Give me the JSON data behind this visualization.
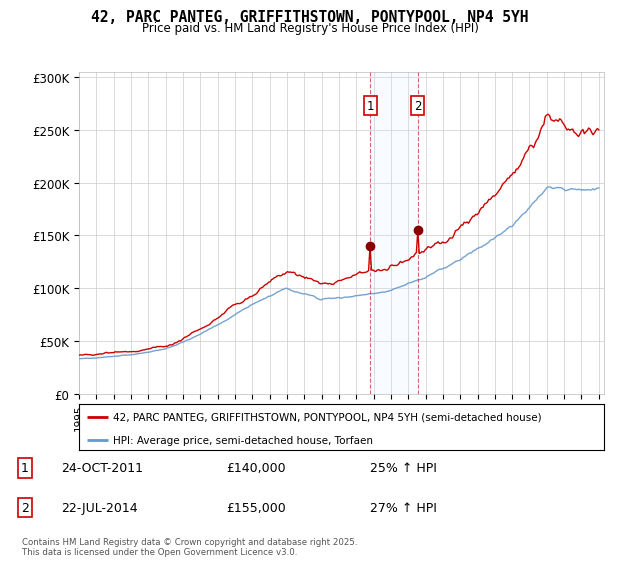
{
  "title": "42, PARC PANTEG, GRIFFITHSTOWN, PONTYPOOL, NP4 5YH",
  "subtitle": "Price paid vs. HM Land Registry's House Price Index (HPI)",
  "legend_line1": "42, PARC PANTEG, GRIFFITHSTOWN, PONTYPOOL, NP4 5YH (semi-detached house)",
  "legend_line2": "HPI: Average price, semi-detached house, Torfaen",
  "red_color": "#cc0000",
  "blue_color": "#6699cc",
  "shade_color": "#ddeeff",
  "transaction1_date": "24-OCT-2011",
  "transaction1_price": "£140,000",
  "transaction1_hpi": "25% ↑ HPI",
  "transaction2_date": "22-JUL-2014",
  "transaction2_price": "£155,000",
  "transaction2_hpi": "27% ↑ HPI",
  "yticks": [
    0,
    50000,
    100000,
    150000,
    200000,
    250000,
    300000
  ],
  "ytick_labels": [
    "£0",
    "£50K",
    "£100K",
    "£150K",
    "£200K",
    "£250K",
    "£300K"
  ],
  "footer": "Contains HM Land Registry data © Crown copyright and database right 2025.\nThis data is licensed under the Open Government Licence v3.0.",
  "transaction1_x": 2011.82,
  "transaction2_x": 2014.55,
  "background_color": "#ffffff",
  "grid_color": "#cccccc"
}
